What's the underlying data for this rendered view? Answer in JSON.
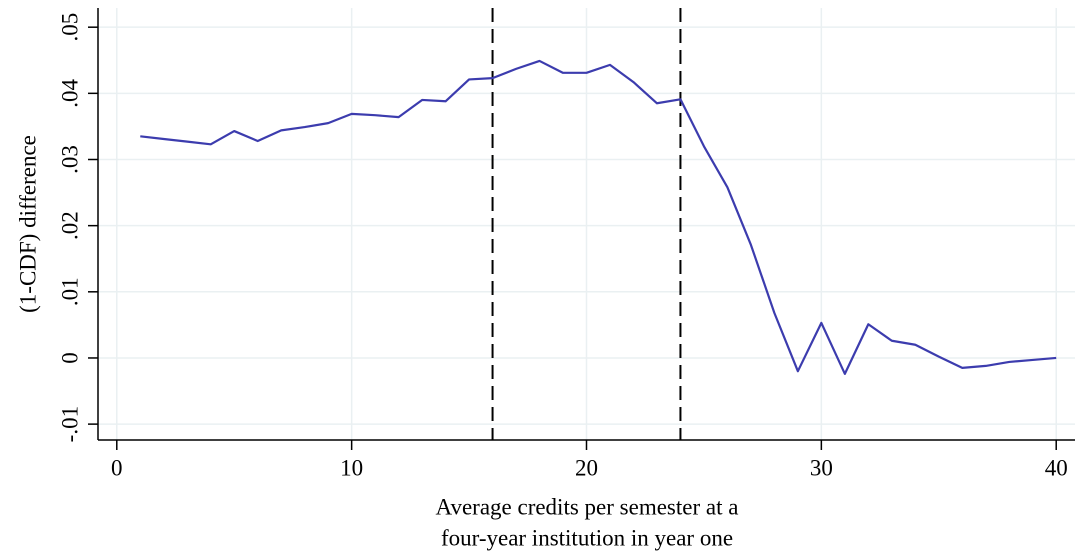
{
  "chart_data": {
    "type": "line",
    "ylabel": "(1-CDF) difference",
    "xlabel": [
      "Average credits per semester at a",
      "four-year institution in year one"
    ],
    "x": [
      1,
      2,
      3,
      4,
      5,
      6,
      7,
      8,
      9,
      10,
      11,
      12,
      13,
      14,
      15,
      16,
      17,
      18,
      19,
      20,
      21,
      22,
      23,
      24,
      25,
      26,
      27,
      28,
      29,
      30,
      31,
      32,
      33,
      34,
      35,
      36,
      37,
      38,
      39,
      40
    ],
    "series": [
      {
        "color": "#3c3cae",
        "values": [
          0.0335,
          0.0331,
          0.0327,
          0.0323,
          0.0343,
          0.0328,
          0.0344,
          0.0349,
          0.0355,
          0.0369,
          0.0367,
          0.0364,
          0.039,
          0.0388,
          0.0421,
          0.0423,
          0.0437,
          0.0449,
          0.0431,
          0.0431,
          0.0443,
          0.0417,
          0.0385,
          0.0391,
          0.032,
          0.0258,
          0.0171,
          0.0068,
          -0.002,
          0.0053,
          -0.0024,
          0.0051,
          0.0026,
          0.002,
          0.0002,
          -0.0015,
          -0.0012,
          -0.0006,
          -0.0003,
          0
        ]
      }
    ],
    "xlim": [
      -0.8,
      40.8
    ],
    "xticks": [
      0,
      10,
      20,
      30,
      40
    ],
    "ylim": [
      -0.0124,
      0.0529
    ],
    "yticks": [
      {
        "value": -0.01,
        "label": "-.01"
      },
      0,
      {
        "value": 0.01,
        "label": ".01"
      },
      {
        "value": 0.02,
        "label": ".02"
      },
      {
        "value": 0.03,
        "label": ".03"
      },
      {
        "value": 0.04,
        "label": ".04"
      },
      {
        "value": 0.05,
        "label": ".05"
      }
    ],
    "vlines": [
      16,
      24
    ],
    "grid": true
  }
}
